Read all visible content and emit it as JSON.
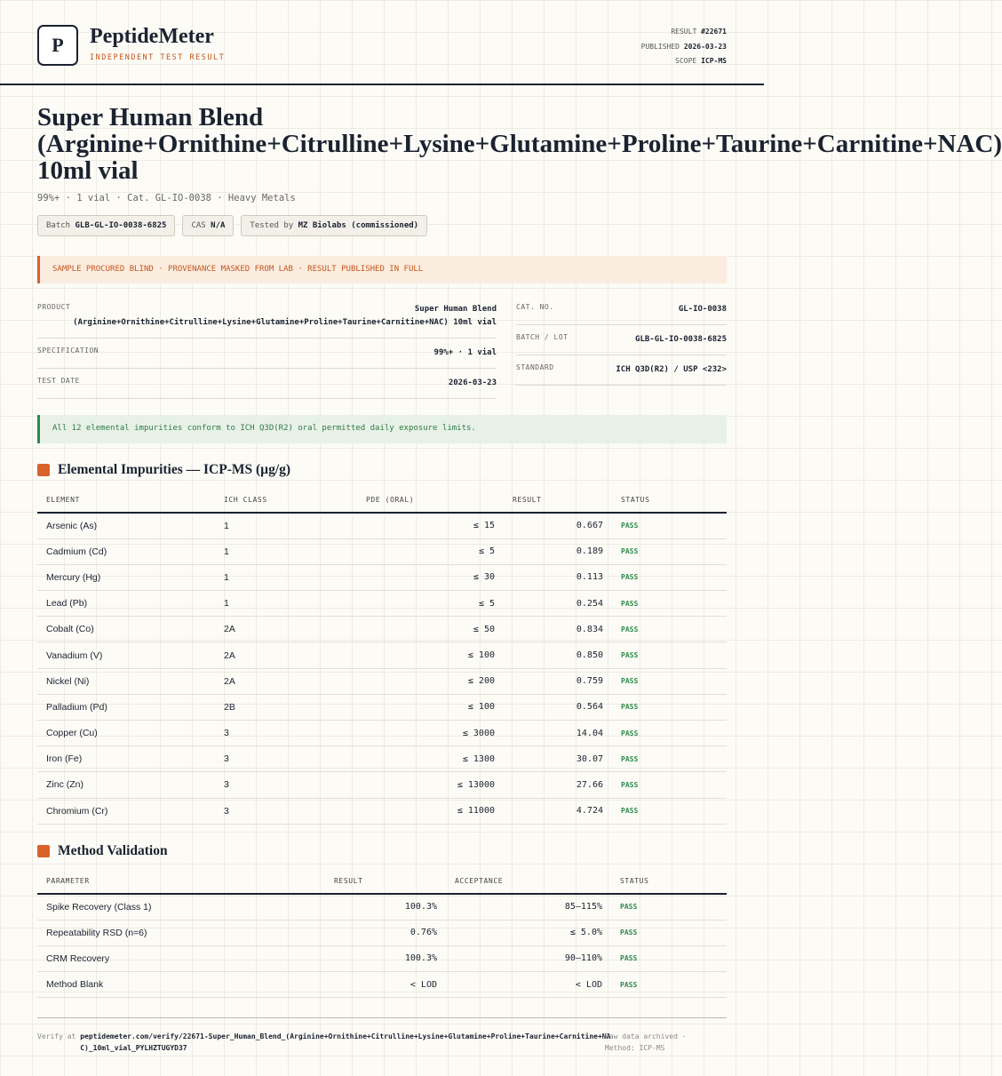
{
  "header": {
    "logo": "P",
    "brand": "PeptideMeter",
    "tagline": "INDEPENDENT TEST RESULT",
    "meta": [
      {
        "label": "RESULT",
        "value": "#22671"
      },
      {
        "label": "PUBLISHED",
        "value": "2026-03-23"
      },
      {
        "label": "SCOPE",
        "value": "ICP-MS"
      }
    ]
  },
  "title": "Super Human Blend (Arginine+Ornithine+Citrulline+Lysine+Glutamine+Proline+Taurine+Carnitine+NAC) 10ml vial",
  "subtitle": "99%+ · 1 vial · Cat. GL-IO-0038 · Heavy Metals",
  "chips": [
    {
      "label": "Batch",
      "value": "GLB-GL-IO-0038-6825"
    },
    {
      "label": "CAS",
      "value": "N/A"
    },
    {
      "label": "Tested by",
      "value": "MZ Biolabs (commissioned)"
    }
  ],
  "notice": "SAMPLE PROCURED BLIND · PROVENANCE MASKED FROM LAB · RESULT PUBLISHED IN FULL",
  "details": {
    "left": [
      {
        "label": "PRODUCT",
        "value": "Super Human Blend (Arginine+Ornithine+Citrulline+Lysine+Glutamine+Proline+Taurine+Carnitine+NAC) 10ml vial"
      },
      {
        "label": "SPECIFICATION",
        "value": "99%+ · 1 vial"
      },
      {
        "label": "TEST DATE",
        "value": "2026-03-23"
      }
    ],
    "right": [
      {
        "label": "CAT. NO.",
        "value": "GL-IO-0038"
      },
      {
        "label": "BATCH / LOT",
        "value": "GLB-GL-IO-0038-6825"
      },
      {
        "label": "STANDARD",
        "value": "ICH Q3D(R2) / USP <232>"
      }
    ]
  },
  "conformance": "All 12 elemental impurities conform to ICH Q3D(R2) oral permitted daily exposure limits.",
  "impurities": {
    "title": "Elemental Impurities — ICP-MS (µg/g)",
    "columns": [
      "ELEMENT",
      "ICH CLASS",
      "PDE (ORAL)",
      "RESULT",
      "STATUS"
    ],
    "rows": [
      [
        "Arsenic (As)",
        "1",
        "≤ 15",
        "0.667",
        "PASS"
      ],
      [
        "Cadmium (Cd)",
        "1",
        "≤ 5",
        "0.189",
        "PASS"
      ],
      [
        "Mercury (Hg)",
        "1",
        "≤ 30",
        "0.113",
        "PASS"
      ],
      [
        "Lead (Pb)",
        "1",
        "≤ 5",
        "0.254",
        "PASS"
      ],
      [
        "Cobalt (Co)",
        "2A",
        "≤ 50",
        "0.834",
        "PASS"
      ],
      [
        "Vanadium (V)",
        "2A",
        "≤ 100",
        "0.850",
        "PASS"
      ],
      [
        "Nickel (Ni)",
        "2A",
        "≤ 200",
        "0.759",
        "PASS"
      ],
      [
        "Palladium (Pd)",
        "2B",
        "≤ 100",
        "0.564",
        "PASS"
      ],
      [
        "Copper (Cu)",
        "3",
        "≤ 3000",
        "14.04",
        "PASS"
      ],
      [
        "Iron (Fe)",
        "3",
        "≤ 1300",
        "30.07",
        "PASS"
      ],
      [
        "Zinc (Zn)",
        "3",
        "≤ 13000",
        "27.66",
        "PASS"
      ],
      [
        "Chromium (Cr)",
        "3",
        "≤ 11000",
        "4.724",
        "PASS"
      ]
    ]
  },
  "validation": {
    "title": "Method Validation",
    "columns": [
      "PARAMETER",
      "RESULT",
      "ACCEPTANCE",
      "STATUS"
    ],
    "rows": [
      [
        "Spike Recovery (Class 1)",
        "100.3%",
        "85–115%",
        "PASS"
      ],
      [
        "Repeatability RSD (n=6)",
        "0.76%",
        "≤ 5.0%",
        "PASS"
      ],
      [
        "CRM Recovery",
        "100.3%",
        "90–110%",
        "PASS"
      ],
      [
        "Method Blank",
        "< LOD",
        "< LOD",
        "PASS"
      ]
    ]
  },
  "footer": {
    "verify_prefix": "Verify at",
    "url": "peptidemeter.com/verify/22671-Super_Human_Blend_(Arginine+Ornithine+Citrulline+Lysine+Glutamine+Proline+Taurine+Carnitine+NAC)_10ml_vial_PYLHZTUGYD37",
    "archived": "Raw data archived ·",
    "method": "Method: ICP-MS"
  }
}
